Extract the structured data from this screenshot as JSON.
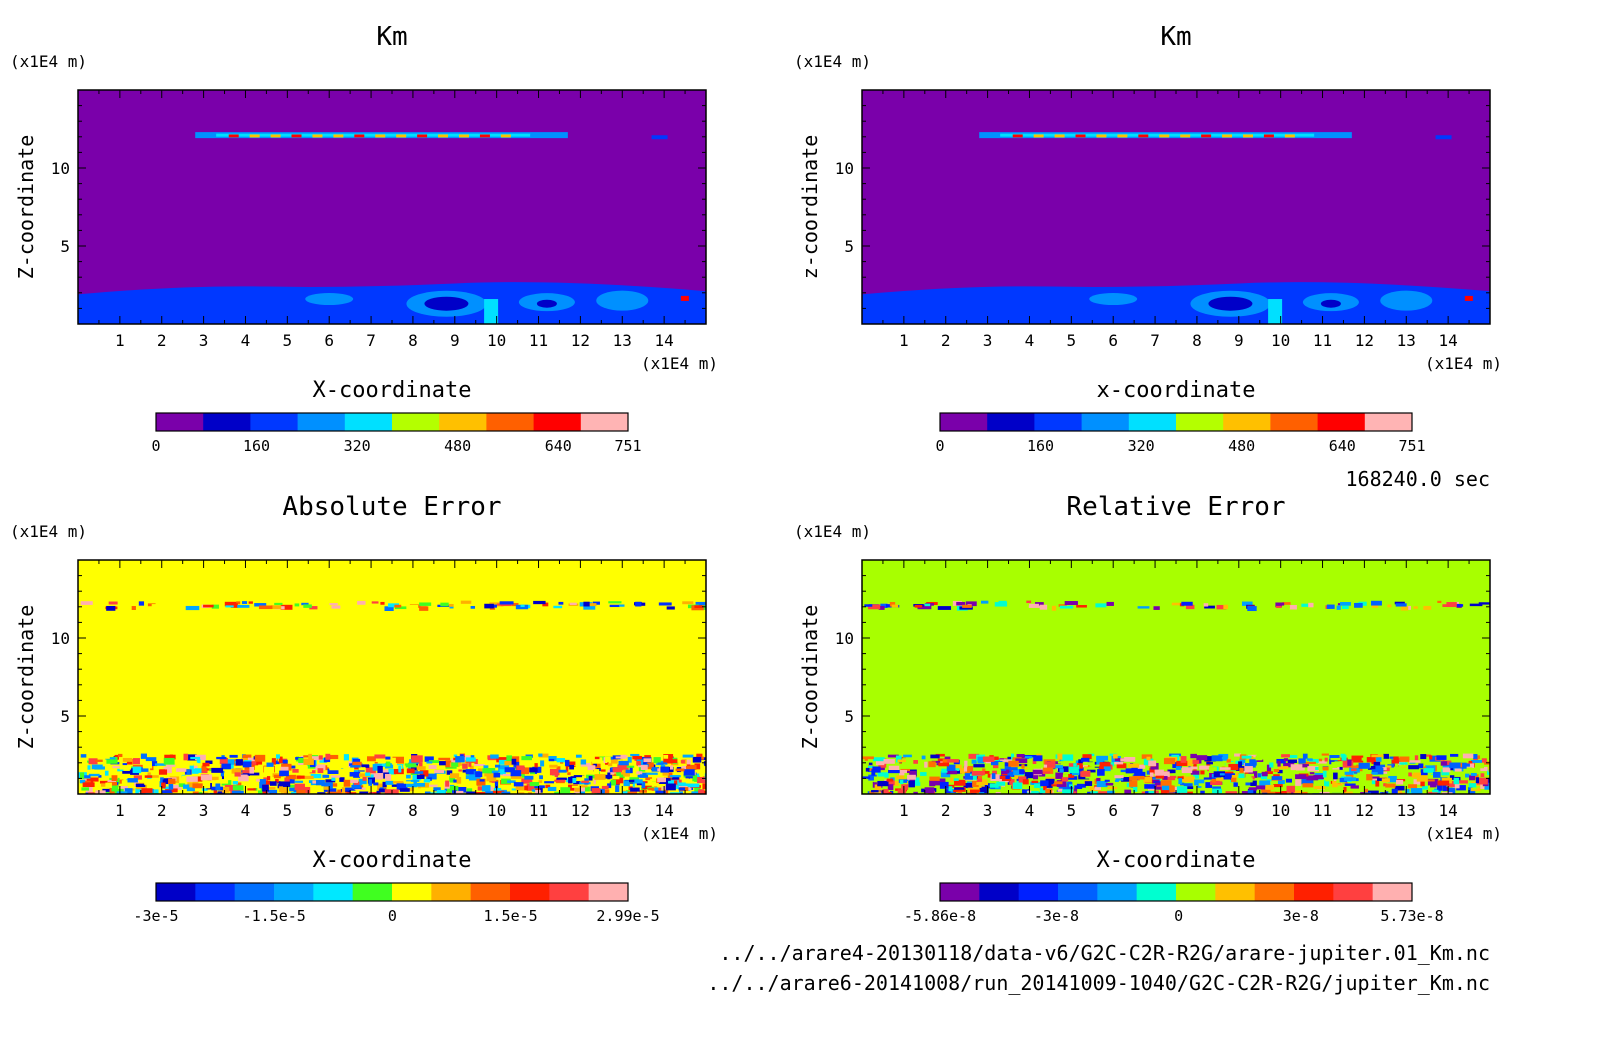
{
  "chart_data": [
    {
      "type": "heatmap",
      "title": "Km",
      "xlabel": "X-coordinate",
      "ylabel": "Z-coordinate",
      "unit_label": "(x1E4 m)",
      "x_unit_label": "(x1E4 m)",
      "xlim": [
        0,
        15
      ],
      "ylim": [
        0,
        15
      ],
      "x_ticks": [
        "1",
        "2",
        "3",
        "4",
        "5",
        "6",
        "7",
        "8",
        "9",
        "10",
        "11",
        "12",
        "13",
        "14"
      ],
      "y_ticks": [
        "5",
        "10"
      ],
      "field": "km",
      "colorbar": {
        "ticks": [
          "0",
          "160",
          "320",
          "480",
          "640",
          "751"
        ],
        "range": [
          0,
          751
        ],
        "colors": [
          "#7a00aa",
          "#0000c8",
          "#0038ff",
          "#0090ff",
          "#00e0ff",
          "#b4ff00",
          "#ffc000",
          "#ff6000",
          "#ff0000",
          "#ffb4b4"
        ]
      }
    },
    {
      "type": "heatmap",
      "title": "Km",
      "xlabel": "x-coordinate",
      "ylabel": "z-coordinate",
      "unit_label": "(x1E4 m)",
      "x_unit_label": "(x1E4 m)",
      "xlim": [
        0,
        15
      ],
      "ylim": [
        0,
        15
      ],
      "x_ticks": [
        "1",
        "2",
        "3",
        "4",
        "5",
        "6",
        "7",
        "8",
        "9",
        "10",
        "11",
        "12",
        "13",
        "14"
      ],
      "y_ticks": [
        "5",
        "10"
      ],
      "field": "km",
      "colorbar": {
        "ticks": [
          "0",
          "160",
          "320",
          "480",
          "640",
          "751"
        ],
        "range": [
          0,
          751
        ],
        "colors": [
          "#7a00aa",
          "#0000c8",
          "#0038ff",
          "#0090ff",
          "#00e0ff",
          "#b4ff00",
          "#ffc000",
          "#ff6000",
          "#ff0000",
          "#ffb4b4"
        ]
      }
    },
    {
      "type": "heatmap",
      "title": "Absolute Error",
      "xlabel": "X-coordinate",
      "ylabel": "Z-coordinate",
      "unit_label": "(x1E4 m)",
      "x_unit_label": "(x1E4 m)",
      "xlim": [
        0,
        15
      ],
      "ylim": [
        0,
        15
      ],
      "x_ticks": [
        "1",
        "2",
        "3",
        "4",
        "5",
        "6",
        "7",
        "8",
        "9",
        "10",
        "11",
        "12",
        "13",
        "14"
      ],
      "y_ticks": [
        "5",
        "10"
      ],
      "field": "abs",
      "colorbar": {
        "ticks": [
          "-3e-5",
          "-1.5e-5",
          "0",
          "1.5e-5",
          "2.99e-5"
        ],
        "range": [
          -3e-05,
          2.99e-05
        ],
        "colors": [
          "#0000c8",
          "#0030ff",
          "#0070ff",
          "#00a8ff",
          "#00e8ff",
          "#40ff20",
          "#ffff00",
          "#ffb000",
          "#ff6000",
          "#ff2000",
          "#ff4040",
          "#ffb0b0"
        ]
      }
    },
    {
      "type": "heatmap",
      "title": "Relative Error",
      "xlabel": "X-coordinate",
      "ylabel": "Z-coordinate",
      "unit_label": "(x1E4 m)",
      "x_unit_label": "(x1E4 m)",
      "xlim": [
        0,
        15
      ],
      "ylim": [
        0,
        15
      ],
      "x_ticks": [
        "1",
        "2",
        "3",
        "4",
        "5",
        "6",
        "7",
        "8",
        "9",
        "10",
        "11",
        "12",
        "13",
        "14"
      ],
      "y_ticks": [
        "5",
        "10"
      ],
      "field": "rel",
      "colorbar": {
        "ticks": [
          "-5.86e-8",
          "-3e-8",
          "0",
          "3e-8",
          "5.73e-8"
        ],
        "range": [
          -5.86e-08,
          5.73e-08
        ],
        "colors": [
          "#7a00aa",
          "#0000c8",
          "#0020ff",
          "#0060ff",
          "#00a0ff",
          "#00ffd0",
          "#a8ff00",
          "#ffc000",
          "#ff7000",
          "#ff2000",
          "#ff4040",
          "#ffb0b0"
        ]
      }
    }
  ],
  "footer": {
    "time": "168240.0 sec",
    "file1": "../../arare4-20130118/data-v6/G2C-C2R-R2G/arare-jupiter.01_Km.nc",
    "file2": "../../arare6-20141008/run_20141009-1040/G2C-C2R-R2G/jupiter_Km.nc"
  }
}
